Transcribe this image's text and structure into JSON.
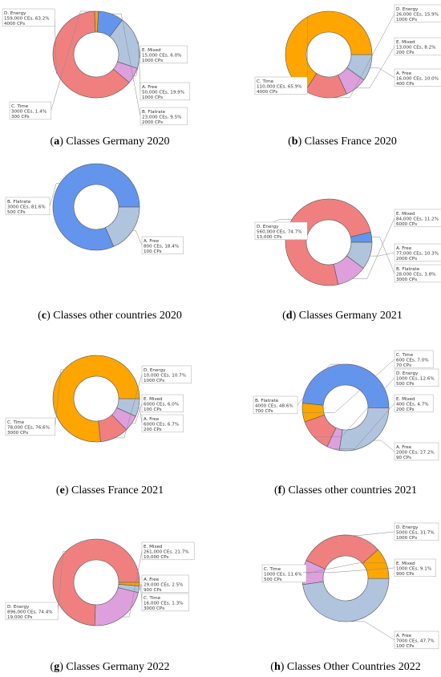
{
  "colors": {
    "A. Free": "#b0c4de",
    "B. Flatrate": "#6495ed",
    "C. Time": "#ffa500",
    "D. Energy": "#f08080",
    "E. Mixed": "#dda0dd"
  },
  "chart_data": [
    {
      "id": "a",
      "type": "pie",
      "donut": true,
      "caption_letter": "a",
      "caption": "Classes Germany 2020",
      "slices": [
        {
          "category": "A. Free",
          "value": 50000,
          "percent": 19.9,
          "lines": [
            "A. Free",
            "50,000 CEs, 19.9%",
            "1000 CPs"
          ]
        },
        {
          "category": "B. Flatrate",
          "value": 23000,
          "percent": 9.5,
          "lines": [
            "B. Flatrate",
            "23,000 CEs, 9.5%",
            "2000 CPs"
          ]
        },
        {
          "category": "C. Time",
          "value": 3000,
          "percent": 1.4,
          "lines": [
            "C. Time",
            "3000 CEs, 1.4%",
            "300 CPs"
          ]
        },
        {
          "category": "D. Energy",
          "value": 159000,
          "percent": 63.2,
          "lines": [
            "D. Energy",
            "159,000 CEs, 63.2%",
            "4000 CPs"
          ]
        },
        {
          "category": "E. Mixed",
          "value": 15000,
          "percent": 6.0,
          "lines": [
            "E. Mixed",
            "15,000 CEs, 6.0%",
            "1000 CPs"
          ]
        }
      ]
    },
    {
      "id": "b",
      "type": "pie",
      "donut": true,
      "caption_letter": "b",
      "caption": "Classes France 2020",
      "slices": [
        {
          "category": "A. Free",
          "value": 16000,
          "percent": 10.0,
          "lines": [
            "A. Free",
            "16,000 CEs, 10.0%",
            "400 CPs"
          ]
        },
        {
          "category": "C. Time",
          "value": 110000,
          "percent": 65.9,
          "lines": [
            "C. Time",
            "110,000 CEs, 65.9%",
            "4000 CPs"
          ]
        },
        {
          "category": "D. Energy",
          "value": 26000,
          "percent": 15.9,
          "lines": [
            "D. Energy",
            "26,000 CEs, 15.9%",
            "1000 CPs"
          ]
        },
        {
          "category": "E. Mixed",
          "value": 13000,
          "percent": 8.2,
          "lines": [
            "E. Mixed",
            "13,000 CEs, 8.2%",
            "200 CPs"
          ]
        }
      ]
    },
    {
      "id": "c",
      "type": "pie",
      "donut": true,
      "caption_letter": "c",
      "caption": "Classes other countries 2020",
      "slices": [
        {
          "category": "A. Free",
          "value": 800,
          "percent": 18.4,
          "lines": [
            "A. Free",
            "800 CEs, 18.4%",
            "100 CPs"
          ]
        },
        {
          "category": "B. Flatrate",
          "value": 3000,
          "percent": 81.6,
          "lines": [
            "B. Flatrate",
            "3000 CEs, 81.6%",
            "500 CPs"
          ]
        }
      ]
    },
    {
      "id": "d",
      "type": "pie",
      "donut": true,
      "caption_letter": "d",
      "caption": "Classes Germany 2021",
      "slices": [
        {
          "category": "A. Free",
          "value": 77000,
          "percent": 10.3,
          "lines": [
            "A. Free",
            "77,000 CEs, 10.3%",
            "2000 CPs"
          ]
        },
        {
          "category": "B. Flatrate",
          "value": 28000,
          "percent": 3.8,
          "lines": [
            "B. Flatrate",
            "28,000 CEs, 3.8%",
            "3000 CPs"
          ]
        },
        {
          "category": "D. Energy",
          "value": 560000,
          "percent": 74.7,
          "lines": [
            "D. Energy",
            "560,000 CEs, 74.7%",
            "13,000 CPs"
          ]
        },
        {
          "category": "E. Mixed",
          "value": 84000,
          "percent": 11.2,
          "lines": [
            "E. Mixed",
            "84,000 CEs, 11.2%",
            "6000 CPs"
          ]
        }
      ]
    },
    {
      "id": "e",
      "type": "pie",
      "donut": true,
      "caption_letter": "e",
      "caption": "Classes France 2021",
      "slices": [
        {
          "category": "A. Free",
          "value": 6000,
          "percent": 6.7,
          "lines": [
            "A. Free",
            "6000 CEs, 6.7%",
            "200 CPs"
          ]
        },
        {
          "category": "C. Time",
          "value": 78000,
          "percent": 76.6,
          "lines": [
            "C. Time",
            "78,000 CEs, 76.6%",
            "3000 CPs"
          ]
        },
        {
          "category": "D. Energy",
          "value": 10000,
          "percent": 10.7,
          "lines": [
            "D. Energy",
            "10,000 CEs, 10.7%",
            "1000 CPs"
          ]
        },
        {
          "category": "E. Mixed",
          "value": 6000,
          "percent": 6.0,
          "lines": [
            "E. Mixed",
            "6000 CEs, 6.0%",
            "100 CPs"
          ]
        }
      ]
    },
    {
      "id": "f",
      "type": "pie",
      "donut": true,
      "caption_letter": "f",
      "caption": "Classes other countries 2021",
      "slices": [
        {
          "category": "A. Free",
          "value": 2000,
          "percent": 27.2,
          "lines": [
            "A. Free",
            "2000 CEs, 27.2%",
            "90 CPs"
          ]
        },
        {
          "category": "B. Flatrate",
          "value": 4000,
          "percent": 48.6,
          "lines": [
            "B. Flatrate",
            "4000 CEs, 48.6%",
            "700 CPs"
          ]
        },
        {
          "category": "C. Time",
          "value": 600,
          "percent": 7.0,
          "lines": [
            "C. Time",
            "600 CEs, 7.0%",
            "70 CPs"
          ]
        },
        {
          "category": "D. Energy",
          "value": 1000,
          "percent": 12.6,
          "lines": [
            "D. Energy",
            "1000 CEs, 12.6%",
            "500 CPs"
          ]
        },
        {
          "category": "E. Mixed",
          "value": 400,
          "percent": 4.7,
          "lines": [
            "E. Mixed",
            "400 CEs, 4.7%",
            "200 CPs"
          ]
        }
      ]
    },
    {
      "id": "g",
      "type": "pie",
      "donut": true,
      "caption_letter": "g",
      "caption": "Classes Germany 2022",
      "slices": [
        {
          "category": "A. Free",
          "value": 29000,
          "percent": 2.5,
          "lines": [
            "A. Free",
            "29,000 CEs, 2.5%",
            "900 CPs"
          ]
        },
        {
          "category": "C. Time",
          "value": 16000,
          "percent": 1.3,
          "lines": [
            "C. Time",
            "16,000 CEs, 1.3%",
            "3000 CPs"
          ]
        },
        {
          "category": "D. Energy",
          "value": 896000,
          "percent": 74.4,
          "lines": [
            "D. Energy",
            "896,000 CEs, 74.4%",
            "19,000 CPs"
          ]
        },
        {
          "category": "E. Mixed",
          "value": 261000,
          "percent": 21.7,
          "lines": [
            "E. Mixed",
            "261,000 CEs, 21.7%",
            "10,000 CPs"
          ]
        }
      ]
    },
    {
      "id": "h",
      "type": "pie",
      "donut": true,
      "caption_letter": "h",
      "caption": "Classes Other Countries 2022",
      "slices": [
        {
          "category": "A. Free",
          "value": 7000,
          "percent": 47.7,
          "lines": [
            "A. Free",
            "7000 CEs, 47.7%",
            "100 CPs"
          ]
        },
        {
          "category": "C. Time",
          "value": 1000,
          "percent": 11.6,
          "lines": [
            "C. Time",
            "1000 CEs, 11.6%",
            "500 CPs"
          ]
        },
        {
          "category": "D. Energy",
          "value": 5000,
          "percent": 31.7,
          "lines": [
            "D. Energy",
            "5000 CEs, 31.7%",
            "1000 CPs"
          ]
        },
        {
          "category": "E. Mixed",
          "value": 1000,
          "percent": 9.1,
          "lines": [
            "E. Mixed",
            "1000 CEs, 9.1%",
            "900 CPs"
          ]
        }
      ]
    }
  ]
}
